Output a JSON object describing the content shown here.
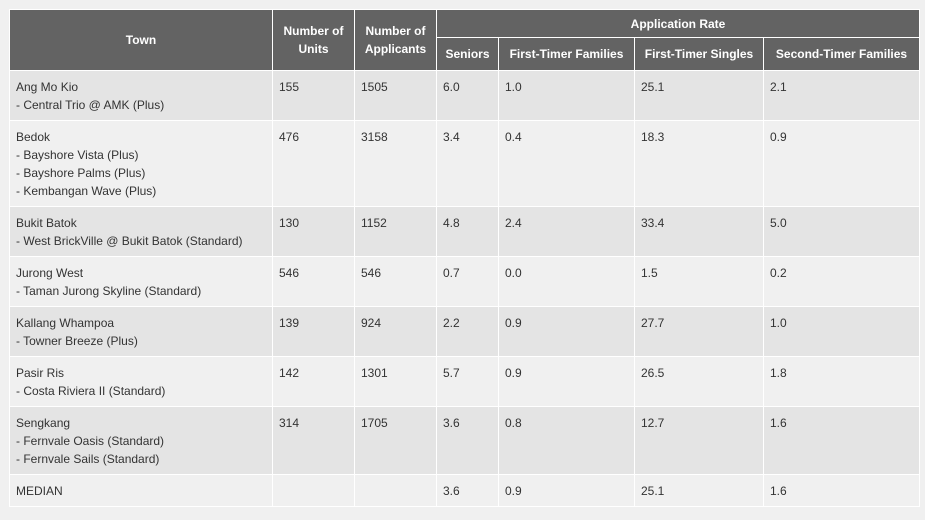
{
  "headers": {
    "town": "Town",
    "units": "Number of Units",
    "applicants": "Number of Applicants",
    "rate_group": "Application Rate",
    "seniors": "Seniors",
    "ftf": "First-Timer Families",
    "fts": "First-Timer Singles",
    "stf": "Second-Timer Families"
  },
  "rows": [
    {
      "town": "Ang Mo Kio",
      "projects": [
        "- Central Trio @ AMK (Plus)"
      ],
      "units": "155",
      "applicants": "1505",
      "seniors": "6.0",
      "ftf": "1.0",
      "fts": "25.1",
      "stf": "2.1"
    },
    {
      "town": "Bedok",
      "projects": [
        "- Bayshore Vista (Plus)",
        "- Bayshore Palms (Plus)",
        "- Kembangan Wave (Plus)"
      ],
      "units": "476",
      "applicants": "3158",
      "seniors": "3.4",
      "ftf": "0.4",
      "fts": "18.3",
      "stf": "0.9"
    },
    {
      "town": "Bukit Batok",
      "projects": [
        "- West BrickVille @ Bukit Batok (Standard)"
      ],
      "units": "130",
      "applicants": "1152",
      "seniors": "4.8",
      "ftf": "2.4",
      "fts": "33.4",
      "stf": "5.0"
    },
    {
      "town": "Jurong West",
      "projects": [
        "- Taman Jurong Skyline (Standard)"
      ],
      "units": "546",
      "applicants": "546",
      "seniors": "0.7",
      "ftf": "0.0",
      "fts": "1.5",
      "stf": "0.2"
    },
    {
      "town": "Kallang Whampoa",
      "projects": [
        "- Towner Breeze (Plus)"
      ],
      "units": "139",
      "applicants": "924",
      "seniors": "2.2",
      "ftf": "0.9",
      "fts": "27.7",
      "stf": "1.0"
    },
    {
      "town": "Pasir Ris",
      "projects": [
        "- Costa Riviera II (Standard)"
      ],
      "units": "142",
      "applicants": "1301",
      "seniors": "5.7",
      "ftf": "0.9",
      "fts": "26.5",
      "stf": "1.8"
    },
    {
      "town": "Sengkang",
      "projects": [
        "- Fernvale Oasis (Standard)",
        "- Fernvale Sails (Standard)"
      ],
      "units": "314",
      "applicants": "1705",
      "seniors": "3.6",
      "ftf": "0.8",
      "fts": "12.7",
      "stf": "1.6"
    }
  ],
  "median": {
    "label": "MEDIAN",
    "units": "",
    "applicants": "",
    "seniors": "3.6",
    "ftf": "0.9",
    "fts": "25.1",
    "stf": "1.6"
  },
  "colors": {
    "header_bg": "#636363",
    "row_odd": "#e4e4e4",
    "row_even": "#f0f0f0",
    "text": "#333333"
  }
}
